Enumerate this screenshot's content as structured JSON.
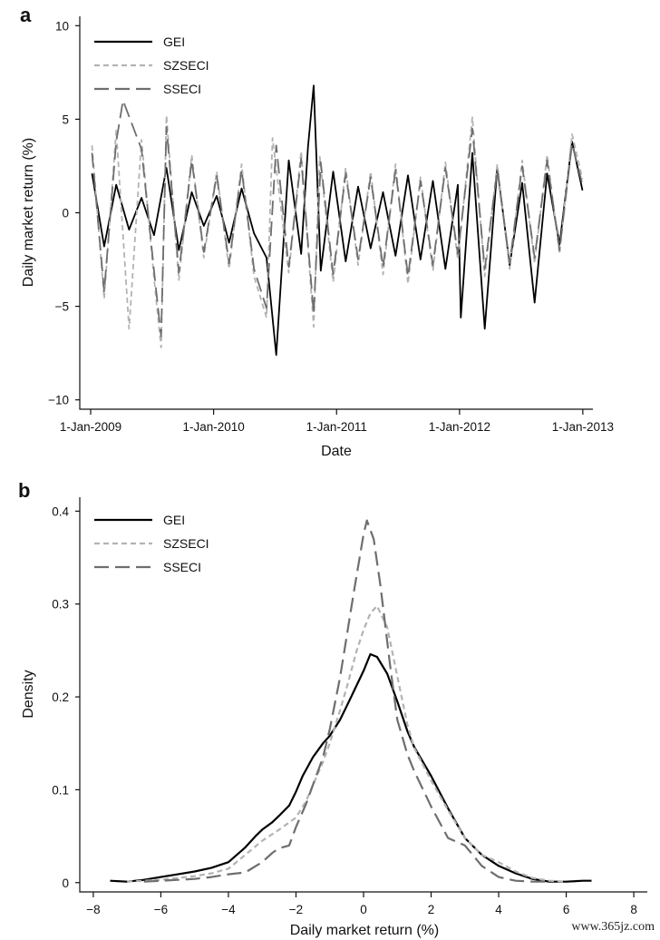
{
  "figure": {
    "watermark": "www.365jz.com"
  },
  "chart_data": [
    {
      "panel": "a",
      "type": "line",
      "xlabel": "Date",
      "ylabel": "Daily market return (%)",
      "x_type": "date",
      "xlim": [
        "2009-01-01",
        "2013-01-31"
      ],
      "ylim": [
        -10.5,
        10.5
      ],
      "x_ticks": [
        "2009-01-01",
        "2010-01-01",
        "2011-01-01",
        "2012-01-01",
        "2013-01-01"
      ],
      "x_tick_labels": [
        "1-Jan-2009",
        "1-Jan-2010",
        "1-Jan-2011",
        "1-Jan-2012",
        "1-Jan-2013"
      ],
      "y_ticks": [
        -10,
        -5,
        0,
        5,
        10
      ],
      "y_tick_labels": [
        "−10",
        "−5",
        "0",
        "5",
        "10"
      ],
      "grid": false,
      "legend": "top-left",
      "series": [
        {
          "name": "GEI",
          "color": "#000000",
          "style": "solid",
          "x": [
            "2009-01-05",
            "2009-02-10",
            "2009-03-18",
            "2009-04-25",
            "2009-06-01",
            "2009-07-08",
            "2009-08-14",
            "2009-09-20",
            "2009-10-28",
            "2009-12-03",
            "2010-01-10",
            "2010-02-16",
            "2010-03-25",
            "2010-05-01",
            "2010-06-07",
            "2010-07-06",
            "2010-08-12",
            "2010-09-18",
            "2010-10-08",
            "2010-10-25",
            "2010-11-15",
            "2010-12-22",
            "2011-01-28",
            "2011-03-06",
            "2011-04-12",
            "2011-05-19",
            "2011-06-25",
            "2011-08-01",
            "2011-09-07",
            "2011-10-14",
            "2011-11-20",
            "2011-12-27",
            "2012-01-05",
            "2012-02-08",
            "2012-03-16",
            "2012-04-22",
            "2012-05-29",
            "2012-07-05",
            "2012-08-11",
            "2012-09-17",
            "2012-10-24",
            "2012-11-30",
            "2012-12-31"
          ],
          "y": [
            2.1,
            -1.8,
            1.5,
            -0.9,
            0.8,
            -1.2,
            2.4,
            -2.0,
            1.1,
            -0.7,
            0.9,
            -1.6,
            1.3,
            -1.1,
            -2.4,
            -7.6,
            2.8,
            -2.2,
            3.5,
            6.8,
            -3.1,
            2.2,
            -2.6,
            1.4,
            -1.9,
            1.1,
            -2.3,
            2.0,
            -2.5,
            1.7,
            -3.0,
            1.5,
            -5.6,
            3.2,
            -6.2,
            2.4,
            -2.8,
            1.6,
            -4.8,
            2.1,
            -1.7,
            3.8,
            1.2
          ]
        },
        {
          "name": "SZSECI",
          "color": "#b3b3b3",
          "style": "short-dash",
          "x": [
            "2009-01-05",
            "2009-02-10",
            "2009-03-18",
            "2009-04-25",
            "2009-06-01",
            "2009-07-08",
            "2009-07-29",
            "2009-08-14",
            "2009-09-20",
            "2009-10-28",
            "2009-12-03",
            "2010-01-10",
            "2010-02-16",
            "2010-03-25",
            "2010-05-01",
            "2010-06-07",
            "2010-06-25",
            "2010-08-12",
            "2010-09-18",
            "2010-10-25",
            "2010-11-12",
            "2010-12-22",
            "2011-01-28",
            "2011-03-06",
            "2011-04-12",
            "2011-05-19",
            "2011-06-25",
            "2011-08-01",
            "2011-09-07",
            "2011-10-14",
            "2011-11-20",
            "2011-12-27",
            "2012-02-08",
            "2012-03-16",
            "2012-04-22",
            "2012-05-29",
            "2012-07-05",
            "2012-08-11",
            "2012-09-17",
            "2012-10-24",
            "2012-11-30",
            "2012-12-31"
          ],
          "y": [
            3.6,
            -4.6,
            4.4,
            -6.2,
            3.9,
            -3.5,
            -7.2,
            5.2,
            -3.6,
            3.1,
            -2.4,
            2.2,
            -3.0,
            2.6,
            -3.4,
            -5.6,
            4.0,
            -3.2,
            3.3,
            -6.1,
            3.0,
            -3.7,
            2.4,
            -2.8,
            2.2,
            -3.3,
            2.6,
            -3.8,
            1.9,
            -3.1,
            2.7,
            -2.5,
            5.1,
            -3.4,
            2.6,
            -3.0,
            2.8,
            -2.7,
            3.1,
            -2.2,
            4.2,
            1.8
          ]
        },
        {
          "name": "SSECI",
          "color": "#6e6e6e",
          "style": "long-dash",
          "x": [
            "2009-01-05",
            "2009-02-10",
            "2009-03-18",
            "2009-04-07",
            "2009-06-01",
            "2009-07-08",
            "2009-07-29",
            "2009-08-14",
            "2009-09-20",
            "2009-10-28",
            "2009-12-03",
            "2010-01-10",
            "2010-02-16",
            "2010-03-25",
            "2010-05-01",
            "2010-06-07",
            "2010-07-06",
            "2010-08-12",
            "2010-09-18",
            "2010-10-25",
            "2010-11-15",
            "2010-12-22",
            "2011-01-28",
            "2011-03-06",
            "2011-04-12",
            "2011-05-19",
            "2011-06-25",
            "2011-08-01",
            "2011-09-07",
            "2011-10-14",
            "2011-11-20",
            "2011-12-27",
            "2012-02-08",
            "2012-03-16",
            "2012-04-22",
            "2012-05-29",
            "2012-07-05",
            "2012-08-11",
            "2012-09-17",
            "2012-10-24",
            "2012-11-30",
            "2012-12-31"
          ],
          "y": [
            3.2,
            -4.2,
            3.8,
            6.0,
            3.4,
            -3.1,
            -6.6,
            4.6,
            -3.2,
            2.8,
            -2.1,
            2.0,
            -2.7,
            2.3,
            -3.0,
            -5.1,
            3.6,
            -2.9,
            2.9,
            -5.4,
            2.7,
            -3.3,
            2.1,
            -2.5,
            1.9,
            -2.9,
            2.3,
            -3.4,
            1.7,
            -2.8,
            2.4,
            -2.2,
            4.5,
            -3.0,
            2.3,
            -2.7,
            2.5,
            -2.4,
            2.8,
            -2.0,
            3.7,
            1.5
          ]
        }
      ]
    },
    {
      "panel": "b",
      "type": "line",
      "xlabel": "Daily market return (%)",
      "ylabel": "Density",
      "xlim": [
        -8.4,
        8.4
      ],
      "ylim": [
        -0.01,
        0.415
      ],
      "x_ticks": [
        -8,
        -6,
        -4,
        -2,
        0,
        2,
        4,
        6,
        8
      ],
      "x_tick_labels": [
        "−8",
        "−6",
        "−4",
        "−2",
        "0",
        "2",
        "4",
        "6",
        "8"
      ],
      "y_ticks": [
        0,
        0.1,
        0.2,
        0.3,
        0.4
      ],
      "y_tick_labels": [
        "0",
        "0.1",
        "0.2",
        "0.3",
        "0.4"
      ],
      "grid": false,
      "legend": "top-left",
      "series": [
        {
          "name": "GEI",
          "color": "#000000",
          "style": "solid",
          "x": [
            -7.5,
            -7.0,
            -6.5,
            -6.0,
            -5.5,
            -5.0,
            -4.5,
            -4.0,
            -3.5,
            -3.2,
            -3.0,
            -2.7,
            -2.5,
            -2.2,
            -2.0,
            -1.8,
            -1.5,
            -1.2,
            -1.0,
            -0.7,
            -0.5,
            -0.3,
            0.0,
            0.2,
            0.4,
            0.7,
            1.0,
            1.3,
            1.5,
            2.0,
            2.5,
            3.0,
            3.5,
            4.0,
            4.5,
            5.0,
            5.5,
            6.0,
            6.5,
            6.75
          ],
          "y": [
            0.002,
            0.001,
            0.003,
            0.006,
            0.009,
            0.012,
            0.016,
            0.022,
            0.038,
            0.05,
            0.057,
            0.065,
            0.072,
            0.083,
            0.098,
            0.115,
            0.135,
            0.15,
            0.158,
            0.175,
            0.19,
            0.205,
            0.228,
            0.246,
            0.243,
            0.225,
            0.195,
            0.163,
            0.146,
            0.115,
            0.08,
            0.048,
            0.03,
            0.018,
            0.01,
            0.004,
            0.001,
            0.001,
            0.002,
            0.002
          ]
        },
        {
          "name": "SZSECI",
          "color": "#b3b3b3",
          "style": "short-dash",
          "x": [
            -7.0,
            -6.5,
            -6.0,
            -5.5,
            -5.0,
            -4.5,
            -4.0,
            -3.5,
            -3.0,
            -2.5,
            -2.0,
            -1.7,
            -1.5,
            -1.2,
            -1.0,
            -0.7,
            -0.5,
            -0.2,
            0.0,
            0.2,
            0.4,
            0.7,
            1.0,
            1.3,
            1.5,
            2.0,
            2.5,
            3.0,
            3.5,
            4.0,
            4.5,
            5.0,
            5.5,
            6.0
          ],
          "y": [
            0.001,
            0.002,
            0.003,
            0.005,
            0.007,
            0.01,
            0.015,
            0.03,
            0.045,
            0.057,
            0.07,
            0.088,
            0.105,
            0.13,
            0.15,
            0.185,
            0.21,
            0.25,
            0.272,
            0.29,
            0.298,
            0.275,
            0.222,
            0.17,
            0.145,
            0.11,
            0.078,
            0.048,
            0.03,
            0.022,
            0.012,
            0.005,
            0.002,
            0.001
          ]
        },
        {
          "name": "SSECI",
          "color": "#6e6e6e",
          "style": "long-dash",
          "x": [
            -6.5,
            -6.0,
            -5.5,
            -5.0,
            -4.5,
            -4.0,
            -3.5,
            -3.0,
            -2.7,
            -2.5,
            -2.2,
            -2.0,
            -1.7,
            -1.5,
            -1.2,
            -1.0,
            -0.7,
            -0.5,
            -0.3,
            0.0,
            0.1,
            0.3,
            0.5,
            0.8,
            1.0,
            1.3,
            1.5,
            2.0,
            2.5,
            3.0,
            3.5,
            4.0,
            4.5,
            5.0,
            5.5
          ],
          "y": [
            0.001,
            0.002,
            0.003,
            0.004,
            0.006,
            0.009,
            0.011,
            0.022,
            0.032,
            0.037,
            0.04,
            0.06,
            0.085,
            0.105,
            0.135,
            0.165,
            0.22,
            0.265,
            0.31,
            0.375,
            0.39,
            0.37,
            0.32,
            0.23,
            0.175,
            0.138,
            0.12,
            0.082,
            0.048,
            0.04,
            0.018,
            0.006,
            0.002,
            0.001,
            0.001
          ]
        }
      ]
    }
  ]
}
